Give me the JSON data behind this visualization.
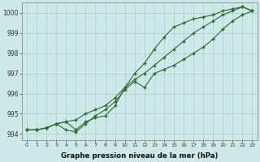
{
  "x": [
    0,
    1,
    2,
    3,
    4,
    5,
    6,
    7,
    8,
    9,
    10,
    11,
    12,
    13,
    14,
    15,
    16,
    17,
    18,
    19,
    20,
    21,
    22,
    23
  ],
  "line1": [
    994.2,
    994.2,
    994.3,
    994.5,
    994.6,
    994.2,
    994.6,
    994.8,
    994.9,
    995.4,
    996.3,
    997.0,
    997.5,
    998.2,
    998.8,
    999.3,
    999.5,
    999.7,
    999.8,
    999.9,
    1000.1,
    1000.2,
    1000.3,
    1000.1
  ],
  "line2": [
    994.2,
    994.2,
    994.3,
    994.5,
    994.2,
    994.1,
    994.5,
    994.9,
    995.2,
    995.6,
    996.2,
    996.6,
    996.3,
    997.0,
    997.2,
    997.4,
    997.7,
    998.0,
    998.3,
    998.7,
    999.2,
    999.6,
    999.9,
    1000.1
  ],
  "line3": [
    994.2,
    994.2,
    994.3,
    994.5,
    994.6,
    994.7,
    995.0,
    995.2,
    995.4,
    995.8,
    996.3,
    996.7,
    997.0,
    997.4,
    997.8,
    998.2,
    998.6,
    999.0,
    999.3,
    999.6,
    999.9,
    1000.1,
    1000.3,
    1000.1
  ],
  "line_color": "#2d6a2d",
  "bg_color": "#cce8e8",
  "grid_color": "#aacece",
  "xlabel": "Graphe pression niveau de la mer (hPa)",
  "ylim": [
    993.7,
    1000.5
  ],
  "xlim": [
    -0.5,
    23.5
  ],
  "yticks": [
    994,
    995,
    996,
    997,
    998,
    999,
    1000
  ],
  "xticks": [
    0,
    1,
    2,
    3,
    4,
    5,
    6,
    7,
    8,
    9,
    10,
    11,
    12,
    13,
    14,
    15,
    16,
    17,
    18,
    19,
    20,
    21,
    22,
    23
  ]
}
